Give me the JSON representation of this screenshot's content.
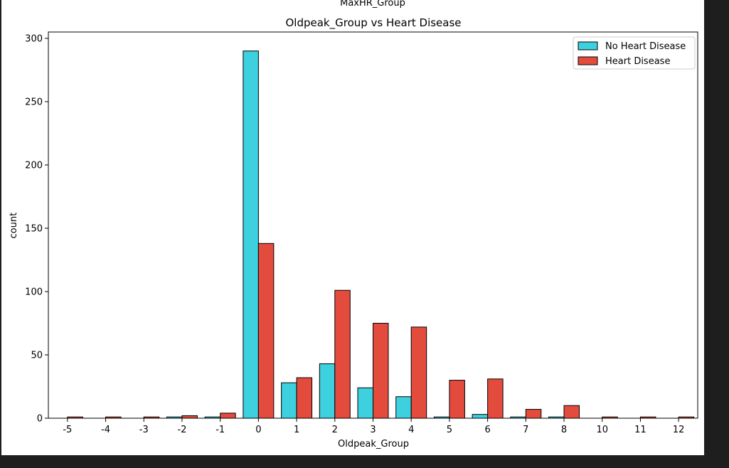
{
  "figure": {
    "above_label": "MaxHR_Group"
  },
  "chart_data": {
    "type": "bar",
    "title": "Oldpeak_Group vs Heart Disease",
    "xlabel": "Oldpeak_Group",
    "ylabel": "count",
    "ylim": [
      0,
      305
    ],
    "yticks": [
      0,
      50,
      100,
      150,
      200,
      250,
      300
    ],
    "categories": [
      "-5",
      "-4",
      "-3",
      "-2",
      "-1",
      "0",
      "1",
      "2",
      "3",
      "4",
      "5",
      "6",
      "7",
      "8",
      "10",
      "11",
      "12"
    ],
    "series": [
      {
        "name": "No Heart Disease",
        "color": "#3dd0df",
        "values": [
          0,
          0,
          0,
          1,
          1,
          290,
          28,
          43,
          24,
          17,
          1,
          3,
          1,
          1,
          0,
          0,
          0
        ]
      },
      {
        "name": "Heart Disease",
        "color": "#e34b3d",
        "values": [
          1,
          1,
          1,
          2,
          4,
          138,
          32,
          101,
          75,
          72,
          30,
          31,
          7,
          10,
          1,
          1,
          1
        ]
      }
    ],
    "legend_position": "top-right",
    "grid": false
  }
}
